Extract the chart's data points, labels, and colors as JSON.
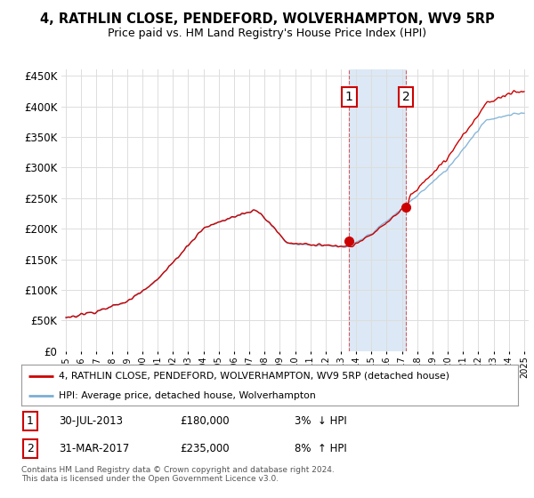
{
  "title": "4, RATHLIN CLOSE, PENDEFORD, WOLVERHAMPTON, WV9 5RP",
  "subtitle": "Price paid vs. HM Land Registry's House Price Index (HPI)",
  "y_ticks": [
    0,
    50000,
    100000,
    150000,
    200000,
    250000,
    300000,
    350000,
    400000,
    450000
  ],
  "y_tick_labels": [
    "£0",
    "£50K",
    "£100K",
    "£150K",
    "£200K",
    "£250K",
    "£300K",
    "£350K",
    "£400K",
    "£450K"
  ],
  "hpi_color": "#7bafd4",
  "price_color": "#cc0000",
  "shading_color": "#dce8f5",
  "transaction1": {
    "date": "30-JUL-2013",
    "price": 180000,
    "pct": "3%",
    "dir": "↓",
    "year": 2013.54
  },
  "transaction2": {
    "date": "31-MAR-2017",
    "price": 235000,
    "pct": "8%",
    "dir": "↑",
    "year": 2017.25
  },
  "legend_line1": "4, RATHLIN CLOSE, PENDEFORD, WOLVERHAMPTON, WV9 5RP (detached house)",
  "legend_line2": "HPI: Average price, detached house, Wolverhampton",
  "footer": "Contains HM Land Registry data © Crown copyright and database right 2024.\nThis data is licensed under the Open Government Licence v3.0.",
  "background_color": "#ffffff",
  "plot_bg_color": "#ffffff",
  "grid_color": "#dddddd"
}
